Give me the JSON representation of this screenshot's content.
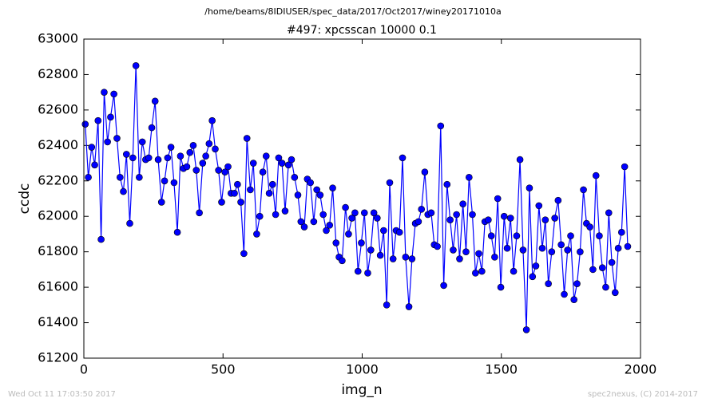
{
  "chart_data": {
    "type": "line",
    "header": "/home/beams/8IDIUSER/spec_data/2017/Oct2017/winey20171010a",
    "title": "#497: xpcsscan 10000 0.1",
    "xlabel": "img_n",
    "ylabel": "ccdc",
    "footer_left": "Wed Oct 11 17:03:50 2017",
    "footer_right": "spec2nexus, (C) 2014-2017",
    "color": "#0000ff",
    "x": [
      5,
      16,
      28,
      39,
      51,
      62,
      73,
      85,
      96,
      108,
      119,
      130,
      142,
      153,
      165,
      176,
      187,
      199,
      210,
      222,
      233,
      244,
      256,
      267,
      279,
      290,
      301,
      313,
      324,
      336,
      347,
      358,
      370,
      381,
      393,
      404,
      415,
      427,
      438,
      450,
      461,
      472,
      484,
      495,
      507,
      518,
      529,
      541,
      552,
      564,
      575,
      586,
      598,
      609,
      621,
      632,
      643,
      655,
      666,
      678,
      689,
      700,
      712,
      723,
      735,
      746,
      757,
      769,
      780,
      792,
      803,
      814,
      826,
      837,
      849,
      860,
      871,
      883,
      894,
      906,
      917,
      928,
      940,
      951,
      963,
      974,
      985,
      997,
      1008,
      1020,
      1031,
      1042,
      1054,
      1065,
      1077,
      1088,
      1099,
      1111,
      1122,
      1134,
      1145,
      1156,
      1168,
      1179,
      1191,
      1202,
      1213,
      1225,
      1236,
      1248,
      1259,
      1270,
      1282,
      1293,
      1305,
      1316,
      1327,
      1339,
      1350,
      1362,
      1373,
      1384,
      1396,
      1407,
      1419,
      1430,
      1441,
      1453,
      1464,
      1476,
      1487,
      1498,
      1510,
      1521,
      1533,
      1544,
      1555,
      1567,
      1578,
      1590,
      1601,
      1612,
      1624,
      1635,
      1647,
      1658,
      1669,
      1681,
      1692,
      1704,
      1715,
      1726,
      1738,
      1749,
      1761,
      1772,
      1783,
      1795,
      1806,
      1818,
      1829,
      1840,
      1852,
      1863,
      1875,
      1886,
      1897,
      1909,
      1920,
      1932,
      1943,
      1954
    ],
    "values": [
      62520,
      62220,
      62390,
      62290,
      62540,
      61870,
      62700,
      62420,
      62560,
      62690,
      62440,
      62220,
      62140,
      62350,
      61960,
      62330,
      62850,
      62220,
      62420,
      62320,
      62330,
      62500,
      62650,
      62320,
      62080,
      62200,
      62330,
      62390,
      62190,
      61910,
      62340,
      62270,
      62280,
      62360,
      62400,
      62260,
      62020,
      62300,
      62340,
      62410,
      62540,
      62380,
      62260,
      62080,
      62250,
      62280,
      62130,
      62130,
      62180,
      62080,
      61790,
      62440,
      62150,
      62300,
      61900,
      62000,
      62250,
      62340,
      62130,
      62180,
      62010,
      62330,
      62300,
      62030,
      62290,
      62320,
      62220,
      62120,
      61970,
      61940,
      62210,
      62190,
      61970,
      62150,
      62120,
      62010,
      61920,
      61950,
      62160,
      61850,
      61770,
      61750,
      62050,
      61900,
      61990,
      62020,
      61690,
      61850,
      62020,
      61680,
      61810,
      62020,
      61990,
      61780,
      61920,
      61500,
      62190,
      61760,
      61920,
      61910,
      62330,
      61770,
      61490,
      61760,
      61960,
      61970,
      62040,
      62250,
      62010,
      62020,
      61840,
      61830,
      62510,
      61610,
      62180,
      61980,
      61810,
      62010,
      61760,
      62070,
      61800,
      62220,
      62010,
      61680,
      61790,
      61690,
      61970,
      61980,
      61890,
      61770,
      62100,
      61600,
      62000,
      61820,
      61990,
      61690,
      61890,
      62320,
      61810,
      61360,
      62160,
      61660,
      61720,
      62060,
      61820,
      61980,
      61620,
      61800,
      61990,
      62090,
      61840,
      61560,
      61810,
      61890,
      61530,
      61620,
      61800,
      62150,
      61960,
      61940,
      61700,
      62230,
      61890,
      61710,
      61600,
      62020,
      61740,
      61570,
      61820,
      61910,
      62280,
      61830
    ],
    "xlim": [
      0,
      2000
    ],
    "xticks": [
      0,
      500,
      1000,
      1500,
      2000
    ],
    "ylim": [
      61200,
      63000
    ],
    "yticks": [
      61200,
      61400,
      61600,
      61800,
      62000,
      62200,
      62400,
      62600,
      62800,
      63000
    ],
    "markers": true,
    "grid": false
  }
}
